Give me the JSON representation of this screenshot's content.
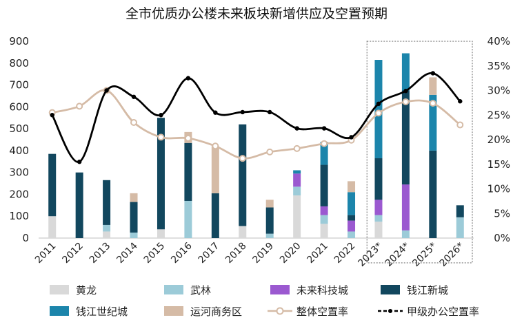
{
  "chart_data": {
    "type": "bar",
    "title": "全市优质办公楼未来板块新增供应及空置预期",
    "categories": [
      "2011",
      "2012",
      "2013",
      "2014",
      "2015",
      "2016",
      "2017",
      "2018",
      "2019",
      "2020",
      "2021",
      "2022",
      "2023*",
      "2024*",
      "2025*",
      "2026*"
    ],
    "ylim": [
      0,
      900
    ],
    "yticks": [
      0,
      100,
      200,
      300,
      400,
      500,
      600,
      700,
      800,
      900
    ],
    "y2lim": [
      0,
      40
    ],
    "y2ticks": [
      "0%",
      "5%",
      "10%",
      "15%",
      "20%",
      "25%",
      "30%",
      "35%",
      "40%"
    ],
    "forecast_box": [
      "2023*",
      "2026*"
    ],
    "series": [
      {
        "name": "黄龙",
        "type": "bar",
        "color": "#d9d9d9",
        "values": [
          100,
          0,
          30,
          0,
          40,
          0,
          0,
          55,
          0,
          195,
          65,
          0,
          75,
          0,
          0,
          0
        ]
      },
      {
        "name": "武林",
        "type": "bar",
        "color": "#9ccbd8",
        "values": [
          0,
          0,
          30,
          25,
          0,
          170,
          0,
          0,
          20,
          40,
          40,
          30,
          30,
          35,
          0,
          95
        ]
      },
      {
        "name": "未来科技城",
        "type": "bar",
        "color": "#9b59d0",
        "values": [
          0,
          0,
          0,
          0,
          0,
          0,
          0,
          0,
          0,
          60,
          40,
          50,
          70,
          210,
          0,
          0
        ]
      },
      {
        "name": "钱江新城",
        "type": "bar",
        "color": "#12475e",
        "values": [
          285,
          300,
          205,
          140,
          510,
          265,
          205,
          465,
          120,
          0,
          190,
          25,
          190,
          430,
          400,
          55
        ]
      },
      {
        "name": "钱江世纪城",
        "type": "bar",
        "color": "#1c85ab",
        "values": [
          0,
          0,
          0,
          0,
          0,
          0,
          0,
          0,
          0,
          15,
          105,
          105,
          450,
          170,
          255,
          0
        ]
      },
      {
        "name": "运河商务区",
        "type": "bar",
        "color": "#d5bba6",
        "values": [
          0,
          0,
          0,
          40,
          0,
          50,
          215,
          0,
          35,
          0,
          0,
          50,
          0,
          0,
          80,
          0
        ]
      },
      {
        "name": "整体空置率",
        "type": "line",
        "axis": "right",
        "color": "#d5bba6",
        "values": [
          25.5,
          26.8,
          30.0,
          23.5,
          20.5,
          20.3,
          18.7,
          16.2,
          17.5,
          18.2,
          19.2,
          19.9,
          25.4,
          27.7,
          27.4,
          23.0
        ]
      },
      {
        "name": "甲级办公空置率",
        "type": "line",
        "axis": "right",
        "color": "#000000",
        "values": [
          25.0,
          15.5,
          30.0,
          28.7,
          25.0,
          32.5,
          25.5,
          25.6,
          25.6,
          22.3,
          22.3,
          20.5,
          27.3,
          29.9,
          33.5,
          27.8
        ]
      }
    ]
  }
}
